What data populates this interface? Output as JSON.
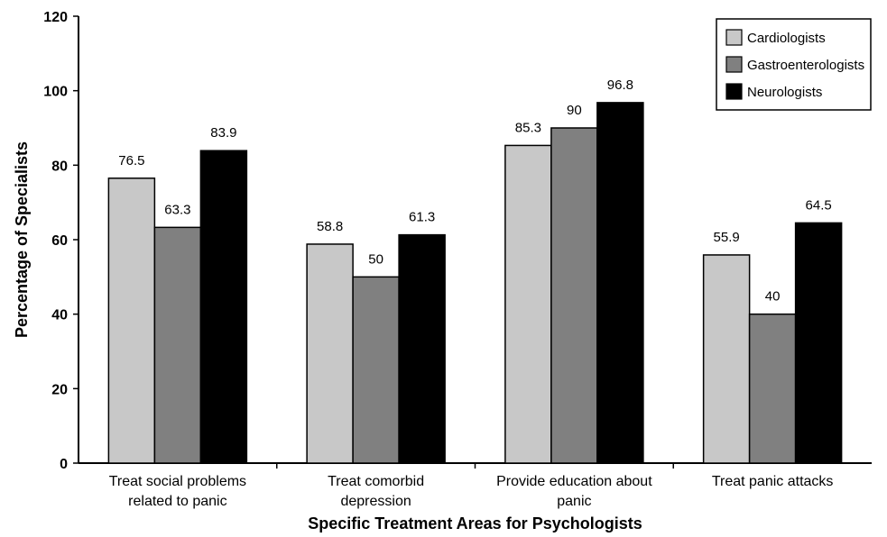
{
  "chart_data": {
    "type": "bar",
    "title": "",
    "xlabel": "Specific Treatment Areas for Psychologists",
    "ylabel": "Percentage of Specialists",
    "ylim": [
      0,
      120
    ],
    "yticks": [
      0,
      20,
      40,
      60,
      80,
      100,
      120
    ],
    "grid": false,
    "legend_position": "top-right",
    "categories": [
      [
        "Treat social problems",
        "related to panic"
      ],
      [
        "Treat comorbid",
        "depression"
      ],
      [
        "Provide education about",
        "panic"
      ],
      [
        "Treat panic attacks"
      ]
    ],
    "series": [
      {
        "name": "Cardiologists",
        "color": "#c8c8c8",
        "values": [
          76.5,
          58.8,
          85.3,
          55.9
        ]
      },
      {
        "name": "Gastroenterologists",
        "color": "#808080",
        "values": [
          63.3,
          50,
          90,
          40
        ]
      },
      {
        "name": "Neurologists",
        "color": "#000000",
        "values": [
          83.9,
          61.3,
          96.8,
          64.5
        ]
      }
    ]
  }
}
